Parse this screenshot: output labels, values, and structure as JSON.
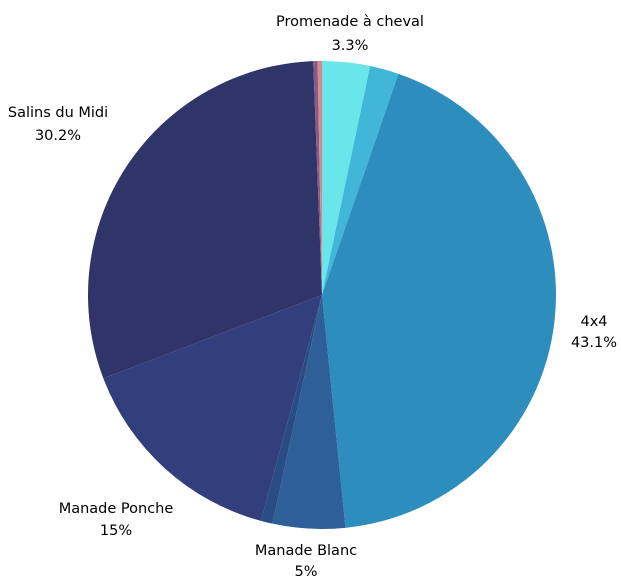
{
  "chart_data": {
    "type": "pie",
    "start_angle_deg": 0,
    "direction": "clockwise",
    "slices": [
      {
        "label": "Promenade à cheval",
        "value": 3.3,
        "value_label": "3.3%",
        "color": "#6ae6ea",
        "show_label": true
      },
      {
        "label": "",
        "value": 2.0,
        "value_label": "",
        "color": "#42b6d9",
        "show_label": false
      },
      {
        "label": "4x4",
        "value": 43.1,
        "value_label": "43.1%",
        "color": "#2d8dbd",
        "show_label": true
      },
      {
        "label": "Manade Blanc",
        "value": 5.0,
        "value_label": "5%",
        "color": "#2e5f98",
        "show_label": true
      },
      {
        "label": "",
        "value": 0.8,
        "value_label": "",
        "color": "#2a4c85",
        "show_label": false
      },
      {
        "label": "Manade Ponche",
        "value": 15.0,
        "value_label": "15%",
        "color": "#323f7c",
        "show_label": true
      },
      {
        "label": "Salins du Midi",
        "value": 30.2,
        "value_label": "30.2%",
        "color": "#2f3469",
        "show_label": true
      },
      {
        "label": "",
        "value": 0.3,
        "value_label": "",
        "color": "#8a5a86",
        "show_label": false
      },
      {
        "label": "",
        "value": 0.3,
        "value_label": "",
        "color": "#d58a8f",
        "show_label": false
      }
    ]
  }
}
